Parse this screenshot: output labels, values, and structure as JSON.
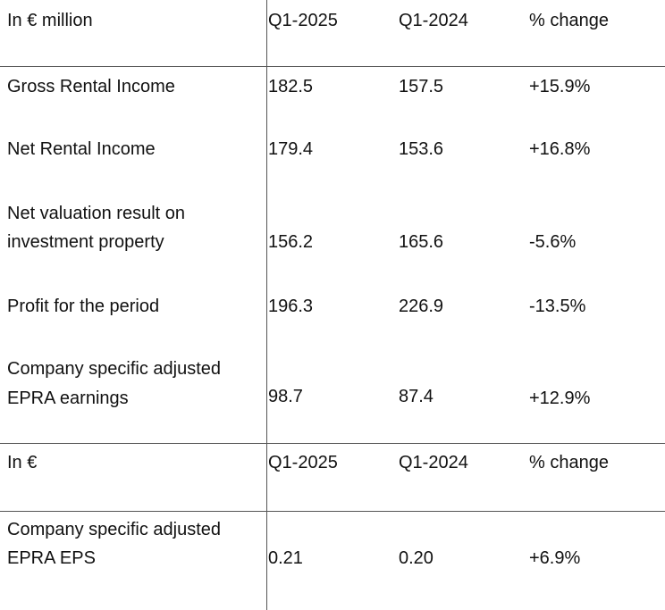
{
  "section1": {
    "header": {
      "unit": "In € million",
      "col1": "Q1-2025",
      "col2": "Q1-2024",
      "col3": "% change"
    },
    "rows": [
      {
        "label_lines": [
          "Gross Rental Income"
        ],
        "q1_2025": "182.5",
        "q1_2024": "157.5",
        "change": "+15.9%"
      },
      {
        "label_lines": [
          "Net Rental Income"
        ],
        "q1_2025": "179.4",
        "q1_2024": "153.6",
        "change": "+16.8%"
      },
      {
        "label_lines": [
          "Net valuation result on",
          "investment property"
        ],
        "q1_2025": "156.2",
        "q1_2024": "165.6",
        "change": "-5.6%"
      },
      {
        "label_lines": [
          "Profit for the period"
        ],
        "q1_2025": "196.3",
        "q1_2024": "226.9",
        "change": "-13.5%"
      },
      {
        "label_lines": [
          "Company specific adjusted",
          "EPRA earnings"
        ],
        "q1_2025": "98.7",
        "q1_2024": "87.4",
        "change": "+12.9%"
      }
    ]
  },
  "section2": {
    "header": {
      "unit": "In €",
      "col1": "Q1-2025",
      "col2": "Q1-2024",
      "col3": "% change"
    },
    "rows": [
      {
        "label_lines": [
          "Company specific adjusted",
          "EPRA EPS"
        ],
        "q1_2025": "0.21",
        "q1_2024": "0.20",
        "change": "+6.9%"
      }
    ]
  }
}
